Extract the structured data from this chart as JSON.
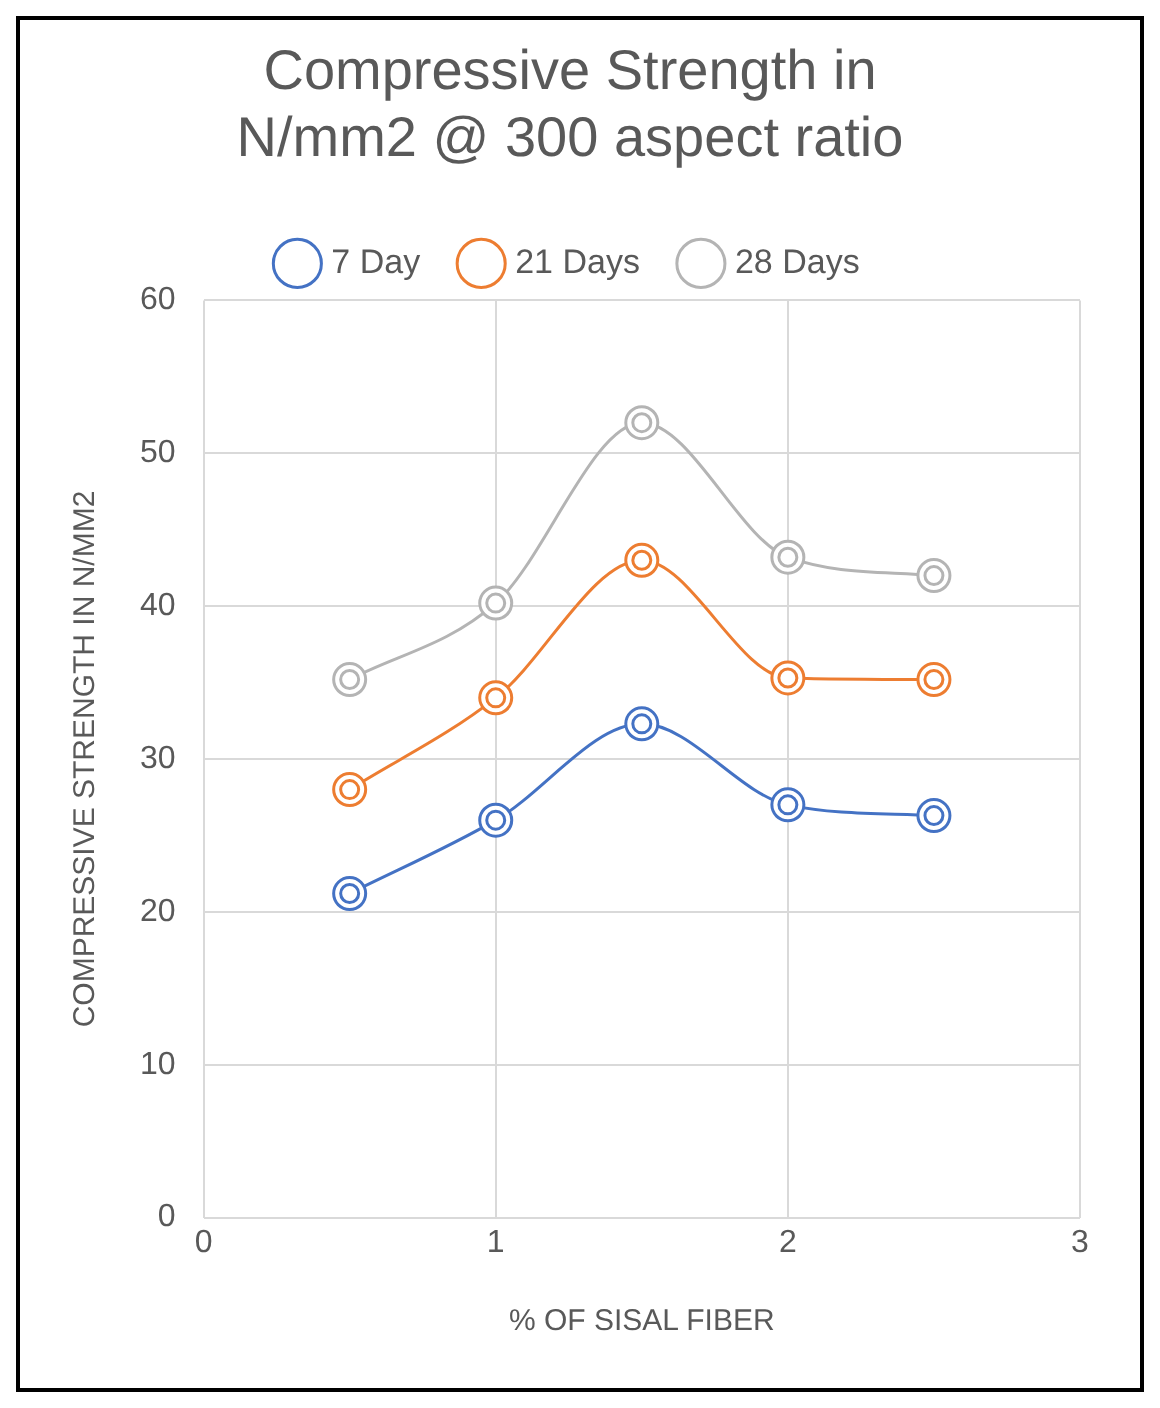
{
  "chart_data": {
    "type": "line",
    "title": [
      "Compressive Strength in",
      "N/mm2 @ 300 aspect ratio"
    ],
    "xlabel": "% OF SISAL FIBER",
    "ylabel": "COMPRESSIVE STRENGTH IN N/MM2",
    "x": [
      0.5,
      1,
      1.5,
      2,
      2.5
    ],
    "series": [
      {
        "name": "7 Day",
        "color": "#4472c4",
        "values": [
          21.2,
          26,
          32.3,
          27,
          26.3
        ]
      },
      {
        "name": "21 Days",
        "color": "#ed7d31",
        "values": [
          28,
          34,
          43,
          35.3,
          35.2
        ]
      },
      {
        "name": "28 Days",
        "color": "#b4b4b4",
        "values": [
          35.2,
          40.2,
          52,
          43.2,
          42
        ]
      }
    ],
    "xlim": [
      0,
      3
    ],
    "xticks": [
      0,
      1,
      2,
      3
    ],
    "ylim": [
      0,
      60
    ],
    "yticks": [
      0,
      10,
      20,
      30,
      40,
      50,
      60
    ],
    "grid": true,
    "legend": "top",
    "marker": "circle",
    "line_style": "solid"
  }
}
